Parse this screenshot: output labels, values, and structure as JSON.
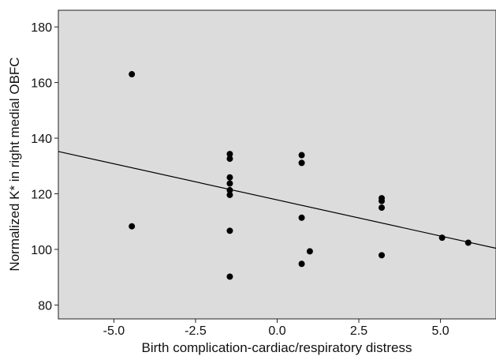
{
  "chart_data": {
    "type": "scatter",
    "xlabel": "Birth complication-cardiac/respiratory distress",
    "ylabel": "Normalized K* in right medial OBFC",
    "xlim": [
      -6.7,
      6.7
    ],
    "ylim": [
      75,
      186
    ],
    "x_ticks": [
      -5.0,
      -2.5,
      0.0,
      2.5,
      5.0
    ],
    "x_tick_labels": [
      "-5.0",
      "-2.5",
      "0.0",
      "2.5",
      "5.0"
    ],
    "y_ticks": [
      80,
      100,
      120,
      140,
      160,
      180
    ],
    "y_tick_labels": [
      "80",
      "100",
      "120",
      "140",
      "160",
      "180"
    ],
    "grid": false,
    "plot_background": "#dcdcdc",
    "point_color": "#000000",
    "points": [
      {
        "x": -4.45,
        "y": 163.0
      },
      {
        "x": -4.45,
        "y": 108.3
      },
      {
        "x": -1.45,
        "y": 134.3
      },
      {
        "x": -1.45,
        "y": 132.6
      },
      {
        "x": -1.45,
        "y": 125.9
      },
      {
        "x": -1.45,
        "y": 123.7
      },
      {
        "x": -1.45,
        "y": 121.3
      },
      {
        "x": -1.45,
        "y": 119.6
      },
      {
        "x": -1.45,
        "y": 106.7
      },
      {
        "x": -1.45,
        "y": 90.2
      },
      {
        "x": 0.75,
        "y": 133.9
      },
      {
        "x": 0.75,
        "y": 131.1
      },
      {
        "x": 0.75,
        "y": 111.4
      },
      {
        "x": 0.75,
        "y": 94.8
      },
      {
        "x": 1.0,
        "y": 99.3
      },
      {
        "x": 3.2,
        "y": 118.4
      },
      {
        "x": 3.2,
        "y": 117.4
      },
      {
        "x": 3.2,
        "y": 115.0
      },
      {
        "x": 3.2,
        "y": 97.9
      },
      {
        "x": 5.05,
        "y": 104.2
      },
      {
        "x": 5.85,
        "y": 102.4
      }
    ],
    "fit_line": {
      "x": [
        -6.7,
        6.7
      ],
      "y": [
        135.2,
        100.4
      ]
    }
  }
}
